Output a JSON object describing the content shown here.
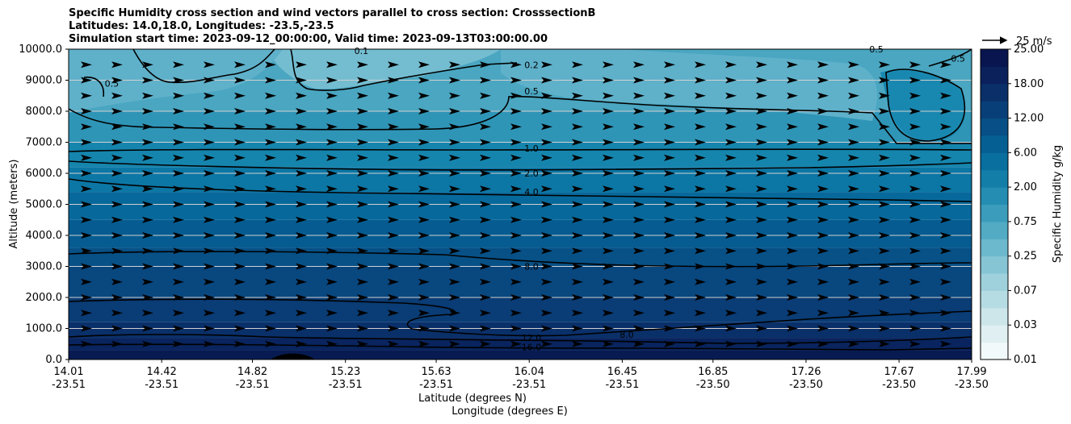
{
  "chart_data": {
    "type": "contour",
    "title": [
      "Specific Humidity cross section and wind vectors parallel to cross section: CrosssectionB",
      "Latitudes: 14.0,18.0, Longitudes: -23.5,-23.5",
      "Simulation start time: 2023-09-12_00:00:00, Valid time: 2023-09-13T03:00:00.00"
    ],
    "ylabel": "Altitude (meters)",
    "xlabel": [
      "Latitude (degrees N)",
      "Longitude (degrees E)"
    ],
    "ylim": [
      0,
      10000
    ],
    "yticks": [
      "0.0",
      "1000.0",
      "2000.0",
      "3000.0",
      "4000.0",
      "5000.0",
      "6000.0",
      "7000.0",
      "8000.0",
      "9000.0",
      "10000.0"
    ],
    "xticks": [
      {
        "lat": "14.01",
        "lon": "-23.51"
      },
      {
        "lat": "14.42",
        "lon": "-23.51"
      },
      {
        "lat": "14.82",
        "lon": "-23.51"
      },
      {
        "lat": "15.23",
        "lon": "-23.51"
      },
      {
        "lat": "15.63",
        "lon": "-23.51"
      },
      {
        "lat": "16.04",
        "lon": "-23.51"
      },
      {
        "lat": "16.45",
        "lon": "-23.51"
      },
      {
        "lat": "16.85",
        "lon": "-23.50"
      },
      {
        "lat": "17.26",
        "lon": "-23.50"
      },
      {
        "lat": "17.67",
        "lon": "-23.50"
      },
      {
        "lat": "17.99",
        "lon": "-23.50"
      }
    ],
    "colorbar": {
      "label": "Specific Humidity g/kg",
      "levels": [
        0.01,
        0.02,
        0.03,
        0.05,
        0.07,
        0.1,
        0.25,
        0.4,
        0.75,
        1.0,
        2.0,
        3.0,
        6.0,
        8.0,
        12.0,
        16.0,
        18.0,
        20.0,
        25.0
      ],
      "tick_labels": [
        "0.01",
        "0.03",
        "0.07",
        "0.25",
        "0.75",
        "2.00",
        "6.00",
        "12.00",
        "18.00",
        "25.00"
      ]
    },
    "contour_labels": [
      {
        "label": "0.1",
        "lat": 15.3,
        "alt": 9950
      },
      {
        "label": "0.2",
        "lat": 16.05,
        "alt": 9500
      },
      {
        "label": "0.5",
        "lat": 16.05,
        "alt": 8650
      },
      {
        "label": "0.5",
        "lat": 14.2,
        "alt": 8900
      },
      {
        "label": "0.5",
        "lat": 17.57,
        "alt": 10000
      },
      {
        "label": "0.5",
        "lat": 17.93,
        "alt": 9700
      },
      {
        "label": "1.0",
        "lat": 16.05,
        "alt": 6800
      },
      {
        "label": "2.0",
        "lat": 16.05,
        "alt": 6000
      },
      {
        "label": "4.0",
        "lat": 16.05,
        "alt": 5400
      },
      {
        "label": "8.0",
        "lat": 16.05,
        "alt": 3000
      },
      {
        "label": "8.0",
        "lat": 16.47,
        "alt": 800
      },
      {
        "label": "12.0",
        "lat": 16.05,
        "alt": 700
      },
      {
        "label": "16.0",
        "lat": 16.05,
        "alt": 400
      }
    ],
    "wind": {
      "direction": "parallel, southward-to-northward (left to right)",
      "reference_label": "25 m/s",
      "reference_value": 25
    }
  }
}
